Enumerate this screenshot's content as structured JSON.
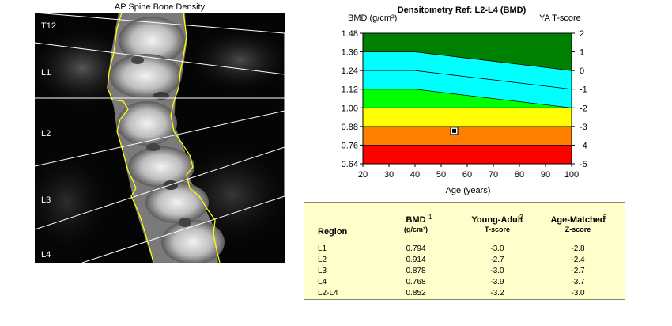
{
  "scan": {
    "title": "AP Spine Bone Density",
    "vertebra_labels": [
      "T12",
      "L1",
      "L2",
      "L3",
      "L4"
    ]
  },
  "chart_data": {
    "type": "area",
    "title": "Densitometry Ref: L2-L4 (BMD)",
    "ylabel": "BMD (g/cm²)",
    "y2label": "YA T-score",
    "xlabel": "Age (years)",
    "xlim": [
      20,
      100
    ],
    "ylim": [
      0.64,
      1.48
    ],
    "x_ticks": [
      "20",
      "30",
      "40",
      "50",
      "60",
      "70",
      "80",
      "90",
      "100"
    ],
    "y_ticks": [
      "1.48",
      "1.36",
      "1.24",
      "1.12",
      "1.00",
      "0.88",
      "0.76",
      "0.64"
    ],
    "y2_ticks": [
      "2",
      "1",
      "0",
      "-1",
      "-2",
      "-3",
      "-4",
      "-5"
    ],
    "bands": [
      {
        "name": "T-score -5 to -4",
        "color": "#ff0000",
        "bottom": [
          [
            20,
            0.64
          ],
          [
            100,
            0.64
          ]
        ],
        "top": [
          [
            20,
            0.76
          ],
          [
            100,
            0.76
          ]
        ]
      },
      {
        "name": "T-score -4 to -3",
        "color": "#ff8000",
        "bottom": [
          [
            20,
            0.76
          ],
          [
            100,
            0.76
          ]
        ],
        "top": [
          [
            20,
            0.88
          ],
          [
            100,
            0.88
          ]
        ]
      },
      {
        "name": "T-score -3 to -2",
        "color": "#ffff00",
        "bottom": [
          [
            20,
            0.88
          ],
          [
            100,
            0.88
          ]
        ],
        "top": [
          [
            20,
            1.0
          ],
          [
            100,
            1.0
          ]
        ]
      },
      {
        "name": "Age-matched -2SD to -1SD",
        "color": "#00ff00",
        "bottom": [
          [
            20,
            1.0
          ],
          [
            100,
            1.0
          ]
        ],
        "top": [
          [
            20,
            1.12
          ],
          [
            40,
            1.12
          ],
          [
            100,
            1.0
          ]
        ]
      },
      {
        "name": "Age-matched -1SD to mean",
        "color": "#00ffff",
        "bottom": [
          [
            20,
            1.12
          ],
          [
            40,
            1.12
          ],
          [
            100,
            1.0
          ]
        ],
        "top": [
          [
            20,
            1.24
          ],
          [
            40,
            1.24
          ],
          [
            100,
            1.12
          ]
        ]
      },
      {
        "name": "Age-matched mean to +1SD",
        "color": "#00ffff",
        "bottom": [
          [
            20,
            1.24
          ],
          [
            40,
            1.24
          ],
          [
            100,
            1.12
          ]
        ],
        "top": [
          [
            20,
            1.36
          ],
          [
            40,
            1.36
          ],
          [
            100,
            1.24
          ]
        ]
      },
      {
        "name": "Above +1SD",
        "color": "#008000",
        "bottom": [
          [
            20,
            1.36
          ],
          [
            40,
            1.36
          ],
          [
            100,
            1.24
          ]
        ],
        "top": [
          [
            20,
            1.48
          ],
          [
            100,
            1.48
          ]
        ]
      }
    ],
    "patient_point": {
      "x": 55,
      "y": 0.852
    }
  },
  "table": {
    "headers": {
      "region": "Region",
      "bmd": "BMD",
      "bmd_num": "1",
      "bmd_unit": "(g/cm²)",
      "ya": "Young-Adult",
      "ya_num": "2",
      "ya_sub": "T-score",
      "am": "Age-Matched",
      "am_num": "3",
      "am_sub": "Z-score"
    },
    "rows": [
      {
        "region": "L1",
        "bmd": "0.794",
        "ya": "-3.0",
        "am": "-2.8"
      },
      {
        "region": "L2",
        "bmd": "0.914",
        "ya": "-2.7",
        "am": "-2.4"
      },
      {
        "region": "L3",
        "bmd": "0.878",
        "ya": "-3.0",
        "am": "-2.7"
      },
      {
        "region": "L4",
        "bmd": "0.768",
        "ya": "-3.9",
        "am": "-3.7"
      },
      {
        "region": "L2-L4",
        "bmd": "0.852",
        "ya": "-3.2",
        "am": "-3.0"
      }
    ]
  }
}
